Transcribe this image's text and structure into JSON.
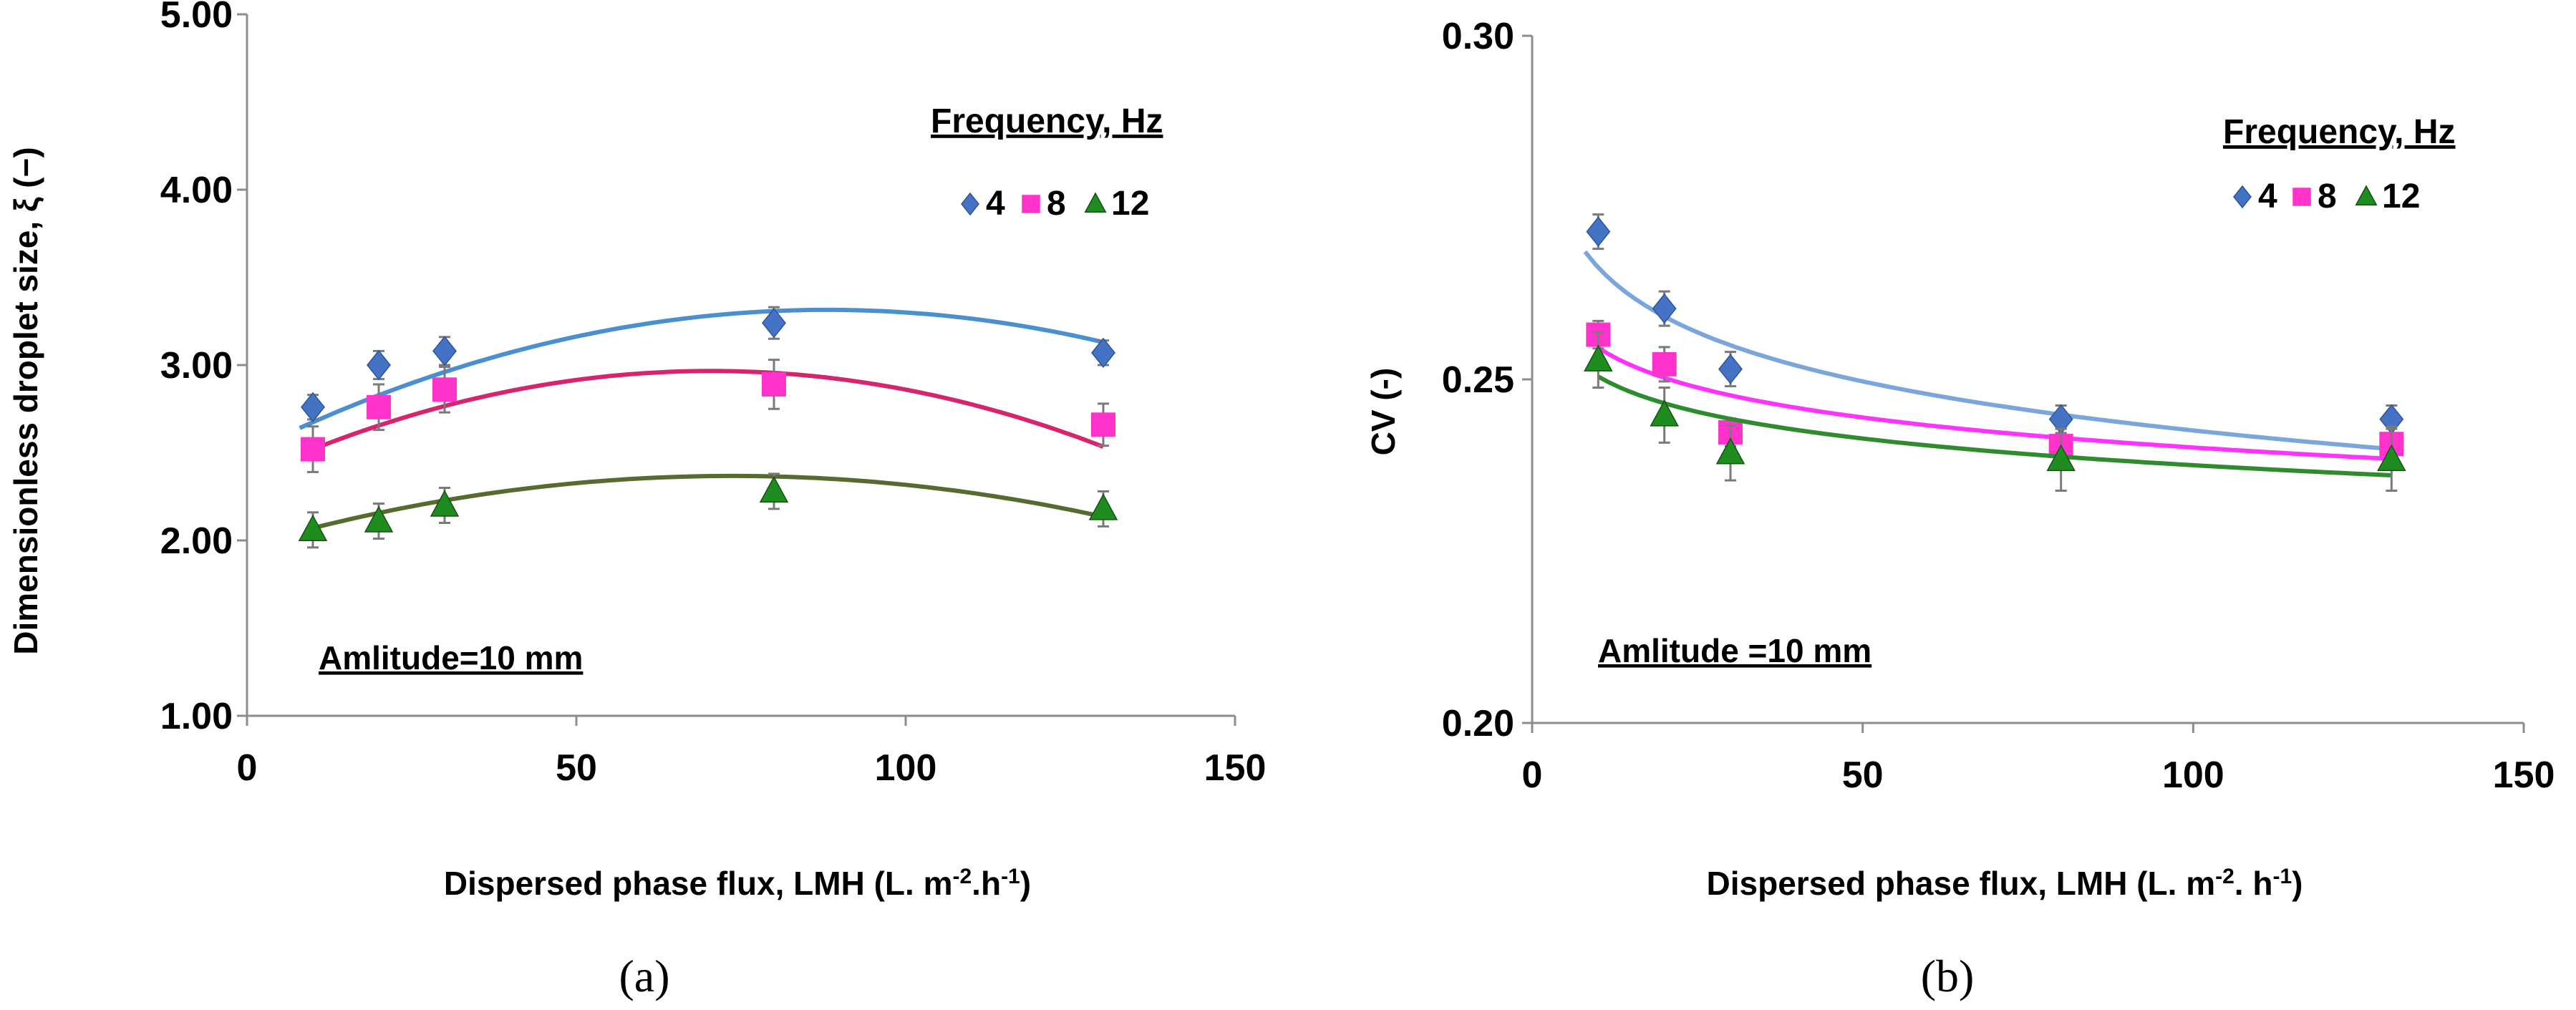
{
  "chart_data": [
    {
      "type": "scatter",
      "panel_label": "(a)",
      "xlabel": "Dispersed phase flux, LMH (L. m",
      "xlabel_sup1": "-2",
      "xlabel_mid": ".h",
      "xlabel_sup2": "-1",
      "xlabel_end": ")",
      "ylabel": "Dimensionless droplet size, ξ (−)",
      "xlim": [
        0,
        150
      ],
      "ylim": [
        1,
        5
      ],
      "x_ticks": [
        "0",
        "50",
        "100",
        "150"
      ],
      "y_ticks": [
        "1.00",
        "2.00",
        "3.00",
        "4.00",
        "5.00"
      ],
      "legend_title": "Frequency, Hz",
      "annotation": "Amlitude=10 mm",
      "series": [
        {
          "name": "4",
          "color": "#4472C4",
          "marker": "diamond",
          "x": [
            10,
            20,
            30,
            80,
            130
          ],
          "y": [
            2.76,
            3.0,
            3.08,
            3.24,
            3.07
          ],
          "err": [
            0.07,
            0.08,
            0.08,
            0.09,
            0.07
          ],
          "fit_color": "#4a90d0",
          "fit_a": 2.5,
          "fit_b": 0.0185,
          "fit_c": -0.000105,
          "fit_x": [
            8,
            130
          ]
        },
        {
          "name": "8",
          "color": "#FF33CC",
          "marker": "square",
          "x": [
            10,
            20,
            30,
            80,
            130
          ],
          "y": [
            2.52,
            2.76,
            2.86,
            2.89,
            2.66
          ],
          "err": [
            0.13,
            0.13,
            0.13,
            0.14,
            0.12
          ],
          "fit_color": "#d6246e",
          "fit_a": 2.36,
          "fit_b": 0.0172,
          "fit_c": -0.000122,
          "fit_x": [
            10,
            130
          ]
        },
        {
          "name": "12",
          "color": "#1E8C1E",
          "marker": "triangle",
          "x": [
            10,
            20,
            30,
            80,
            130
          ],
          "y": [
            2.06,
            2.11,
            2.2,
            2.28,
            2.18
          ],
          "err": [
            0.1,
            0.1,
            0.1,
            0.1,
            0.1
          ],
          "fit_color": "#556b2f",
          "fit_a": 1.97,
          "fit_b": 0.0108,
          "fit_c": -7.33e-05,
          "fit_x": [
            10,
            130
          ]
        }
      ]
    },
    {
      "type": "scatter",
      "panel_label": "(b)",
      "xlabel": "Dispersed phase flux, LMH (L. m",
      "xlabel_sup1": "-2",
      "xlabel_mid": ". h",
      "xlabel_sup2": "-1",
      "xlabel_end": ")",
      "ylabel": "CV (-)",
      "xlim": [
        0,
        150
      ],
      "ylim": [
        0.2,
        0.3
      ],
      "x_ticks": [
        "0",
        "50",
        "100",
        "150"
      ],
      "y_ticks": [
        "0.20",
        "0.25",
        "0.30"
      ],
      "legend_title": "Frequency, Hz",
      "annotation": "Amlitude =10 mm",
      "series": [
        {
          "name": "4",
          "color": "#4472C4",
          "marker": "diamond",
          "x": [
            10,
            20,
            30,
            80,
            130
          ],
          "y": [
            0.2715,
            0.2603,
            0.2515,
            0.2442,
            0.2442
          ],
          "err": [
            0.0025,
            0.0025,
            0.0025,
            0.002,
            0.002
          ],
          "fit_color": "#7aa6dc",
          "fit_a": 0.29,
          "fit_b": -0.0103,
          "fit_x": [
            8,
            130
          ]
        },
        {
          "name": "8",
          "color": "#FF33CC",
          "marker": "square",
          "x": [
            10,
            20,
            30,
            80,
            130
          ],
          "y": [
            0.2565,
            0.2522,
            0.2423,
            0.2403,
            0.2406
          ],
          "err": [
            0.002,
            0.0025,
            0.002,
            0.0025,
            0.0025
          ],
          "fit_color": "#ff33ff",
          "fit_a": 0.2691,
          "fit_b": -0.0063,
          "fit_x": [
            10,
            130
          ]
        },
        {
          "name": "12",
          "color": "#1E8C1E",
          "marker": "triangle",
          "x": [
            10,
            20,
            30,
            80,
            130
          ],
          "y": [
            0.2528,
            0.2448,
            0.2393,
            0.2383,
            0.2383
          ],
          "err": [
            0.004,
            0.004,
            0.004,
            0.0045,
            0.0045
          ],
          "fit_color": "#2e8b2e",
          "fit_a": 0.2633,
          "fit_b": -0.0056,
          "fit_x": [
            10,
            130
          ]
        }
      ]
    }
  ]
}
